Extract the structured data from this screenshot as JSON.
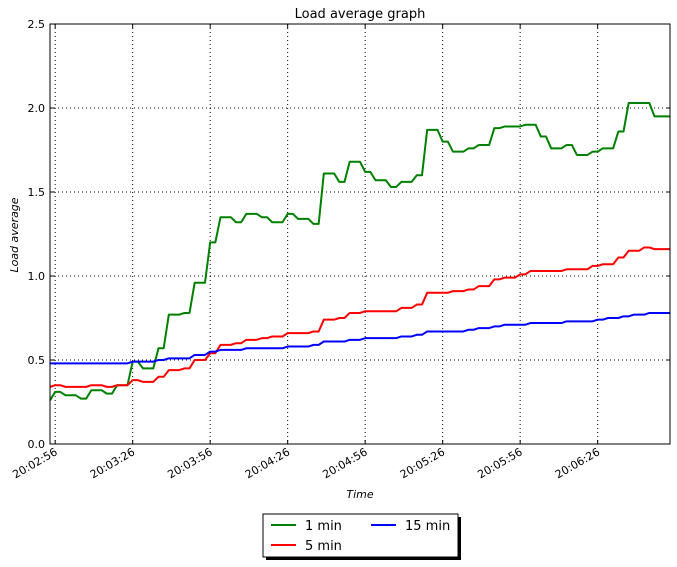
{
  "chart_data": {
    "type": "line",
    "title": "Load average graph",
    "xlabel": "Time",
    "ylabel": "Load average",
    "ylim": [
      0,
      2.5
    ],
    "yticks": [
      "0.0",
      "0.5",
      "1.0",
      "1.5",
      "2.0",
      "2.5"
    ],
    "xtick_labels": [
      "20:02:56",
      "20:03:26",
      "20:03:56",
      "20:04:26",
      "20:04:56",
      "20:05:26",
      "20:05:56",
      "20:06:26"
    ],
    "xtick_seconds": [
      176,
      206,
      236,
      266,
      296,
      326,
      356,
      386
    ],
    "xlim": [
      174,
      414
    ],
    "grid": true,
    "legend_position": "bottom-center, outside",
    "series": [
      {
        "name": "1 min",
        "color": "#008000",
        "points": [
          [
            174,
            0.26
          ],
          [
            176,
            0.31
          ],
          [
            178,
            0.31
          ],
          [
            180,
            0.29
          ],
          [
            184,
            0.29
          ],
          [
            186,
            0.27
          ],
          [
            188,
            0.27
          ],
          [
            190,
            0.32
          ],
          [
            194,
            0.32
          ],
          [
            196,
            0.3
          ],
          [
            198,
            0.3
          ],
          [
            200,
            0.35
          ],
          [
            204,
            0.35
          ],
          [
            206,
            0.49
          ],
          [
            208,
            0.49
          ],
          [
            210,
            0.45
          ],
          [
            214,
            0.45
          ],
          [
            216,
            0.57
          ],
          [
            218,
            0.57
          ],
          [
            220,
            0.77
          ],
          [
            224,
            0.77
          ],
          [
            226,
            0.78
          ],
          [
            228,
            0.78
          ],
          [
            230,
            0.96
          ],
          [
            234,
            0.96
          ],
          [
            236,
            1.2
          ],
          [
            238,
            1.2
          ],
          [
            240,
            1.35
          ],
          [
            244,
            1.35
          ],
          [
            246,
            1.32
          ],
          [
            248,
            1.32
          ],
          [
            250,
            1.37
          ],
          [
            254,
            1.37
          ],
          [
            256,
            1.35
          ],
          [
            258,
            1.35
          ],
          [
            260,
            1.32
          ],
          [
            264,
            1.32
          ],
          [
            266,
            1.37
          ],
          [
            268,
            1.37
          ],
          [
            270,
            1.34
          ],
          [
            274,
            1.34
          ],
          [
            276,
            1.31
          ],
          [
            278,
            1.31
          ],
          [
            280,
            1.61
          ],
          [
            284,
            1.61
          ],
          [
            286,
            1.56
          ],
          [
            288,
            1.56
          ],
          [
            290,
            1.68
          ],
          [
            294,
            1.68
          ],
          [
            296,
            1.62
          ],
          [
            298,
            1.62
          ],
          [
            300,
            1.57
          ],
          [
            304,
            1.57
          ],
          [
            306,
            1.53
          ],
          [
            308,
            1.53
          ],
          [
            310,
            1.56
          ],
          [
            314,
            1.56
          ],
          [
            316,
            1.6
          ],
          [
            318,
            1.6
          ],
          [
            320,
            1.87
          ],
          [
            324,
            1.87
          ],
          [
            326,
            1.8
          ],
          [
            328,
            1.8
          ],
          [
            330,
            1.74
          ],
          [
            334,
            1.74
          ],
          [
            336,
            1.76
          ],
          [
            338,
            1.76
          ],
          [
            340,
            1.78
          ],
          [
            344,
            1.78
          ],
          [
            346,
            1.88
          ],
          [
            348,
            1.88
          ],
          [
            350,
            1.89
          ],
          [
            356,
            1.89
          ],
          [
            358,
            1.9
          ],
          [
            362,
            1.9
          ],
          [
            364,
            1.83
          ],
          [
            366,
            1.83
          ],
          [
            368,
            1.76
          ],
          [
            372,
            1.76
          ],
          [
            374,
            1.78
          ],
          [
            376,
            1.78
          ],
          [
            378,
            1.72
          ],
          [
            382,
            1.72
          ],
          [
            384,
            1.74
          ],
          [
            386,
            1.74
          ],
          [
            388,
            1.76
          ],
          [
            392,
            1.76
          ],
          [
            394,
            1.86
          ],
          [
            396,
            1.86
          ],
          [
            398,
            2.03
          ],
          [
            406,
            2.03
          ],
          [
            408,
            1.95
          ],
          [
            414,
            1.95
          ]
        ]
      },
      {
        "name": "5 min",
        "color": "#ff0000",
        "points": [
          [
            174,
            0.34
          ],
          [
            176,
            0.35
          ],
          [
            178,
            0.35
          ],
          [
            180,
            0.34
          ],
          [
            188,
            0.34
          ],
          [
            190,
            0.35
          ],
          [
            194,
            0.35
          ],
          [
            196,
            0.34
          ],
          [
            198,
            0.34
          ],
          [
            200,
            0.35
          ],
          [
            204,
            0.35
          ],
          [
            206,
            0.38
          ],
          [
            208,
            0.38
          ],
          [
            210,
            0.37
          ],
          [
            214,
            0.37
          ],
          [
            216,
            0.4
          ],
          [
            218,
            0.4
          ],
          [
            220,
            0.44
          ],
          [
            224,
            0.44
          ],
          [
            226,
            0.45
          ],
          [
            228,
            0.45
          ],
          [
            230,
            0.5
          ],
          [
            234,
            0.5
          ],
          [
            236,
            0.54
          ],
          [
            238,
            0.54
          ],
          [
            240,
            0.59
          ],
          [
            244,
            0.59
          ],
          [
            246,
            0.6
          ],
          [
            248,
            0.6
          ],
          [
            250,
            0.62
          ],
          [
            254,
            0.62
          ],
          [
            256,
            0.63
          ],
          [
            258,
            0.63
          ],
          [
            260,
            0.64
          ],
          [
            264,
            0.64
          ],
          [
            266,
            0.66
          ],
          [
            274,
            0.66
          ],
          [
            276,
            0.67
          ],
          [
            278,
            0.67
          ],
          [
            280,
            0.74
          ],
          [
            284,
            0.74
          ],
          [
            286,
            0.75
          ],
          [
            288,
            0.75
          ],
          [
            290,
            0.78
          ],
          [
            294,
            0.78
          ],
          [
            296,
            0.79
          ],
          [
            308,
            0.79
          ],
          [
            310,
            0.81
          ],
          [
            314,
            0.81
          ],
          [
            316,
            0.83
          ],
          [
            318,
            0.83
          ],
          [
            320,
            0.9
          ],
          [
            328,
            0.9
          ],
          [
            330,
            0.91
          ],
          [
            334,
            0.91
          ],
          [
            336,
            0.92
          ],
          [
            338,
            0.92
          ],
          [
            340,
            0.94
          ],
          [
            344,
            0.94
          ],
          [
            346,
            0.98
          ],
          [
            348,
            0.98
          ],
          [
            350,
            0.99
          ],
          [
            354,
            0.99
          ],
          [
            356,
            1.01
          ],
          [
            358,
            1.01
          ],
          [
            360,
            1.03
          ],
          [
            372,
            1.03
          ],
          [
            374,
            1.04
          ],
          [
            382,
            1.04
          ],
          [
            384,
            1.06
          ],
          [
            386,
            1.06
          ],
          [
            388,
            1.07
          ],
          [
            392,
            1.07
          ],
          [
            394,
            1.11
          ],
          [
            396,
            1.11
          ],
          [
            398,
            1.15
          ],
          [
            402,
            1.15
          ],
          [
            404,
            1.17
          ],
          [
            406,
            1.17
          ],
          [
            408,
            1.16
          ],
          [
            414,
            1.16
          ]
        ]
      },
      {
        "name": "15 min",
        "color": "#0000ff",
        "points": [
          [
            174,
            0.48
          ],
          [
            204,
            0.48
          ],
          [
            206,
            0.49
          ],
          [
            214,
            0.49
          ],
          [
            216,
            0.5
          ],
          [
            218,
            0.5
          ],
          [
            220,
            0.51
          ],
          [
            228,
            0.51
          ],
          [
            230,
            0.53
          ],
          [
            234,
            0.53
          ],
          [
            236,
            0.55
          ],
          [
            238,
            0.55
          ],
          [
            240,
            0.56
          ],
          [
            248,
            0.56
          ],
          [
            250,
            0.57
          ],
          [
            264,
            0.57
          ],
          [
            266,
            0.58
          ],
          [
            274,
            0.58
          ],
          [
            276,
            0.59
          ],
          [
            278,
            0.59
          ],
          [
            280,
            0.61
          ],
          [
            288,
            0.61
          ],
          [
            290,
            0.62
          ],
          [
            294,
            0.62
          ],
          [
            296,
            0.63
          ],
          [
            308,
            0.63
          ],
          [
            310,
            0.64
          ],
          [
            314,
            0.64
          ],
          [
            316,
            0.65
          ],
          [
            318,
            0.65
          ],
          [
            320,
            0.67
          ],
          [
            334,
            0.67
          ],
          [
            336,
            0.68
          ],
          [
            338,
            0.68
          ],
          [
            340,
            0.69
          ],
          [
            344,
            0.69
          ],
          [
            346,
            0.7
          ],
          [
            348,
            0.7
          ],
          [
            350,
            0.71
          ],
          [
            358,
            0.71
          ],
          [
            360,
            0.72
          ],
          [
            372,
            0.72
          ],
          [
            374,
            0.73
          ],
          [
            384,
            0.73
          ],
          [
            386,
            0.74
          ],
          [
            388,
            0.74
          ],
          [
            390,
            0.75
          ],
          [
            394,
            0.75
          ],
          [
            396,
            0.76
          ],
          [
            398,
            0.76
          ],
          [
            400,
            0.77
          ],
          [
            404,
            0.77
          ],
          [
            406,
            0.78
          ],
          [
            414,
            0.78
          ]
        ]
      }
    ]
  }
}
